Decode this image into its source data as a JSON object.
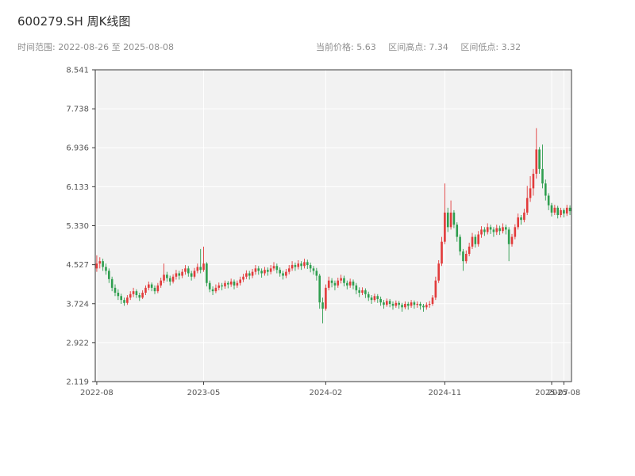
{
  "header": {
    "title": "600279.SH 周K线图",
    "time_range": "时间范围: 2022-08-26 至 2025-08-08",
    "current_price": "当前价格: 5.63",
    "range_high": "区间高点: 7.34",
    "range_low": "区间低点: 3.32"
  },
  "chart_data": {
    "type": "candlestick",
    "title": "600279.SH 周K线图",
    "symbol": "600279.SH",
    "interval": "weekly",
    "time_range": [
      "2022-08-26",
      "2025-08-08"
    ],
    "current_price": 5.63,
    "range_high": 7.34,
    "range_low": 3.32,
    "ylim": [
      2.119,
      8.541
    ],
    "y_ticks": [
      "8.541",
      "7.738",
      "6.936",
      "6.133",
      "5.330",
      "4.527",
      "3.724",
      "2.922",
      "2.119"
    ],
    "x_ticks": [
      {
        "label": "2022-08",
        "i": 0
      },
      {
        "label": "2023-05",
        "i": 35
      },
      {
        "label": "2024-02",
        "i": 75
      },
      {
        "label": "2024-11",
        "i": 114
      },
      {
        "label": "2025-07",
        "i": 149
      },
      {
        "label": "2025-08",
        "i": 153
      }
    ],
    "grid": true,
    "legend": "none",
    "colors": {
      "up": "#e23b3b",
      "down": "#2f9e4f",
      "plot_bg": "#f2f2f2",
      "grid": "#ffffff",
      "axis_text": "#555555",
      "border": "#3a3a3a"
    },
    "candles": [
      [
        4.45,
        4.72,
        4.38,
        4.55
      ],
      [
        4.55,
        4.68,
        4.45,
        4.6
      ],
      [
        4.6,
        4.65,
        4.4,
        4.48
      ],
      [
        4.48,
        4.55,
        4.32,
        4.4
      ],
      [
        4.4,
        4.45,
        4.15,
        4.23
      ],
      [
        4.23,
        4.28,
        3.98,
        4.05
      ],
      [
        4.05,
        4.12,
        3.88,
        3.95
      ],
      [
        3.95,
        4.02,
        3.8,
        3.88
      ],
      [
        3.88,
        3.93,
        3.72,
        3.8
      ],
      [
        3.8,
        3.85,
        3.68,
        3.74
      ],
      [
        3.74,
        3.9,
        3.7,
        3.85
      ],
      [
        3.85,
        3.98,
        3.8,
        3.92
      ],
      [
        3.92,
        4.05,
        3.86,
        3.98
      ],
      [
        3.98,
        4.02,
        3.84,
        3.9
      ],
      [
        3.9,
        3.95,
        3.78,
        3.85
      ],
      [
        3.85,
        4.0,
        3.82,
        3.95
      ],
      [
        3.95,
        4.1,
        3.9,
        4.05
      ],
      [
        4.05,
        4.18,
        4.0,
        4.12
      ],
      [
        4.12,
        4.16,
        3.98,
        4.05
      ],
      [
        4.05,
        4.1,
        3.92,
        3.98
      ],
      [
        3.98,
        4.15,
        3.94,
        4.1
      ],
      [
        4.1,
        4.26,
        4.05,
        4.2
      ],
      [
        4.2,
        4.55,
        4.15,
        4.32
      ],
      [
        4.32,
        4.38,
        4.18,
        4.25
      ],
      [
        4.25,
        4.3,
        4.1,
        4.18
      ],
      [
        4.18,
        4.33,
        4.14,
        4.28
      ],
      [
        4.28,
        4.42,
        4.22,
        4.35
      ],
      [
        4.35,
        4.4,
        4.22,
        4.3
      ],
      [
        4.3,
        4.44,
        4.25,
        4.38
      ],
      [
        4.38,
        4.52,
        4.32,
        4.45
      ],
      [
        4.45,
        4.5,
        4.28,
        4.35
      ],
      [
        4.35,
        4.4,
        4.2,
        4.28
      ],
      [
        4.28,
        4.46,
        4.24,
        4.4
      ],
      [
        4.4,
        4.55,
        4.35,
        4.48
      ],
      [
        4.48,
        4.85,
        4.35,
        4.42
      ],
      [
        4.42,
        4.9,
        4.38,
        4.55
      ],
      [
        4.55,
        4.58,
        4.08,
        4.15
      ],
      [
        4.15,
        4.2,
        3.96,
        4.02
      ],
      [
        4.02,
        4.08,
        3.9,
        3.98
      ],
      [
        3.98,
        4.12,
        3.94,
        4.05
      ],
      [
        4.05,
        4.16,
        4.0,
        4.1
      ],
      [
        4.1,
        4.15,
        4.0,
        4.08
      ],
      [
        4.08,
        4.2,
        4.03,
        4.15
      ],
      [
        4.15,
        4.19,
        4.04,
        4.12
      ],
      [
        4.12,
        4.24,
        4.07,
        4.18
      ],
      [
        4.18,
        4.22,
        4.02,
        4.1
      ],
      [
        4.1,
        4.2,
        4.05,
        4.15
      ],
      [
        4.15,
        4.28,
        4.1,
        4.22
      ],
      [
        4.22,
        4.34,
        4.17,
        4.28
      ],
      [
        4.28,
        4.41,
        4.23,
        4.35
      ],
      [
        4.35,
        4.4,
        4.22,
        4.3
      ],
      [
        4.3,
        4.44,
        4.25,
        4.38
      ],
      [
        4.38,
        4.52,
        4.32,
        4.45
      ],
      [
        4.45,
        4.5,
        4.32,
        4.4
      ],
      [
        4.4,
        4.45,
        4.26,
        4.35
      ],
      [
        4.35,
        4.48,
        4.3,
        4.42
      ],
      [
        4.42,
        4.47,
        4.3,
        4.38
      ],
      [
        4.38,
        4.52,
        4.33,
        4.45
      ],
      [
        4.45,
        4.58,
        4.4,
        4.5
      ],
      [
        4.5,
        4.55,
        4.35,
        4.42
      ],
      [
        4.42,
        4.47,
        4.28,
        4.35
      ],
      [
        4.35,
        4.4,
        4.22,
        4.3
      ],
      [
        4.3,
        4.44,
        4.25,
        4.38
      ],
      [
        4.38,
        4.52,
        4.33,
        4.45
      ],
      [
        4.45,
        4.6,
        4.4,
        4.52
      ],
      [
        4.52,
        4.57,
        4.4,
        4.48
      ],
      [
        4.48,
        4.62,
        4.43,
        4.55
      ],
      [
        4.55,
        4.6,
        4.42,
        4.5
      ],
      [
        4.5,
        4.65,
        4.45,
        4.58
      ],
      [
        4.58,
        4.63,
        4.44,
        4.52
      ],
      [
        4.52,
        4.57,
        4.37,
        4.45
      ],
      [
        4.45,
        4.5,
        4.32,
        4.4
      ],
      [
        4.4,
        4.46,
        4.2,
        4.3
      ],
      [
        4.3,
        4.34,
        3.62,
        3.75
      ],
      [
        3.75,
        3.85,
        3.32,
        3.62
      ],
      [
        3.62,
        4.12,
        3.58,
        4.05
      ],
      [
        4.05,
        4.28,
        4.0,
        4.2
      ],
      [
        4.2,
        4.25,
        4.06,
        4.15
      ],
      [
        4.15,
        4.2,
        4.0,
        4.1
      ],
      [
        4.1,
        4.26,
        4.05,
        4.2
      ],
      [
        4.2,
        4.32,
        4.14,
        4.25
      ],
      [
        4.25,
        4.3,
        4.08,
        4.15
      ],
      [
        4.15,
        4.2,
        4.02,
        4.1
      ],
      [
        4.1,
        4.24,
        4.05,
        4.18
      ],
      [
        4.18,
        4.22,
        4.02,
        4.1
      ],
      [
        4.1,
        4.15,
        3.92,
        4.0
      ],
      [
        4.0,
        4.06,
        3.86,
        3.95
      ],
      [
        3.95,
        4.06,
        3.9,
        4.0
      ],
      [
        4.0,
        4.04,
        3.84,
        3.92
      ],
      [
        3.92,
        3.97,
        3.78,
        3.85
      ],
      [
        3.85,
        3.9,
        3.72,
        3.8
      ],
      [
        3.8,
        3.93,
        3.76,
        3.88
      ],
      [
        3.88,
        3.92,
        3.74,
        3.82
      ],
      [
        3.82,
        3.87,
        3.68,
        3.75
      ],
      [
        3.75,
        3.8,
        3.62,
        3.7
      ],
      [
        3.7,
        3.83,
        3.66,
        3.78
      ],
      [
        3.78,
        3.82,
        3.65,
        3.72
      ],
      [
        3.72,
        3.77,
        3.6,
        3.68
      ],
      [
        3.68,
        3.79,
        3.64,
        3.74
      ],
      [
        3.74,
        3.78,
        3.62,
        3.7
      ],
      [
        3.7,
        3.74,
        3.56,
        3.65
      ],
      [
        3.65,
        3.77,
        3.61,
        3.72
      ],
      [
        3.72,
        3.76,
        3.6,
        3.68
      ],
      [
        3.68,
        3.8,
        3.64,
        3.75
      ],
      [
        3.75,
        3.79,
        3.62,
        3.7
      ],
      [
        3.7,
        3.77,
        3.64,
        3.72
      ],
      [
        3.72,
        3.76,
        3.6,
        3.68
      ],
      [
        3.68,
        3.72,
        3.56,
        3.65
      ],
      [
        3.65,
        3.75,
        3.6,
        3.7
      ],
      [
        3.7,
        3.78,
        3.64,
        3.72
      ],
      [
        3.72,
        3.9,
        3.68,
        3.85
      ],
      [
        3.85,
        4.28,
        3.8,
        4.2
      ],
      [
        4.2,
        4.62,
        4.15,
        4.55
      ],
      [
        4.55,
        5.1,
        4.5,
        5.0
      ],
      [
        5.0,
        6.2,
        4.95,
        5.6
      ],
      [
        5.6,
        5.7,
        5.2,
        5.3
      ],
      [
        5.3,
        5.85,
        5.25,
        5.6
      ],
      [
        5.6,
        5.65,
        5.28,
        5.35
      ],
      [
        5.35,
        5.4,
        5.0,
        5.1
      ],
      [
        5.1,
        5.15,
        4.72,
        4.8
      ],
      [
        4.8,
        4.85,
        4.4,
        4.6
      ],
      [
        4.6,
        4.82,
        4.55,
        4.75
      ],
      [
        4.75,
        4.98,
        4.7,
        4.9
      ],
      [
        4.9,
        5.18,
        4.85,
        5.1
      ],
      [
        5.1,
        5.15,
        4.88,
        4.95
      ],
      [
        4.95,
        5.22,
        4.9,
        5.15
      ],
      [
        5.15,
        5.32,
        5.08,
        5.25
      ],
      [
        5.25,
        5.3,
        5.12,
        5.2
      ],
      [
        5.2,
        5.38,
        5.15,
        5.3
      ],
      [
        5.3,
        5.35,
        5.16,
        5.25
      ],
      [
        5.25,
        5.3,
        5.1,
        5.2
      ],
      [
        5.2,
        5.35,
        5.14,
        5.28
      ],
      [
        5.28,
        5.33,
        5.14,
        5.22
      ],
      [
        5.22,
        5.38,
        5.17,
        5.3
      ],
      [
        5.3,
        5.35,
        5.15,
        5.25
      ],
      [
        5.25,
        5.3,
        4.6,
        4.95
      ],
      [
        4.95,
        5.16,
        4.9,
        5.1
      ],
      [
        5.1,
        5.36,
        5.05,
        5.3
      ],
      [
        5.3,
        5.58,
        5.25,
        5.5
      ],
      [
        5.5,
        5.55,
        5.35,
        5.45
      ],
      [
        5.45,
        5.68,
        5.4,
        5.6
      ],
      [
        5.6,
        6.15,
        5.55,
        5.9
      ],
      [
        5.9,
        6.35,
        5.82,
        6.1
      ],
      [
        6.1,
        6.5,
        5.95,
        6.4
      ],
      [
        6.4,
        7.34,
        6.3,
        6.9
      ],
      [
        6.9,
        6.95,
        6.4,
        6.5
      ],
      [
        6.5,
        7.0,
        6.1,
        6.2
      ],
      [
        6.2,
        6.28,
        5.85,
        5.95
      ],
      [
        5.95,
        6.0,
        5.65,
        5.75
      ],
      [
        5.75,
        5.8,
        5.52,
        5.6
      ],
      [
        5.6,
        5.76,
        5.55,
        5.7
      ],
      [
        5.7,
        5.74,
        5.48,
        5.55
      ],
      [
        5.55,
        5.7,
        5.5,
        5.65
      ],
      [
        5.65,
        5.69,
        5.5,
        5.58
      ],
      [
        5.58,
        5.76,
        5.53,
        5.7
      ],
      [
        5.7,
        5.75,
        5.55,
        5.63
      ]
    ]
  }
}
